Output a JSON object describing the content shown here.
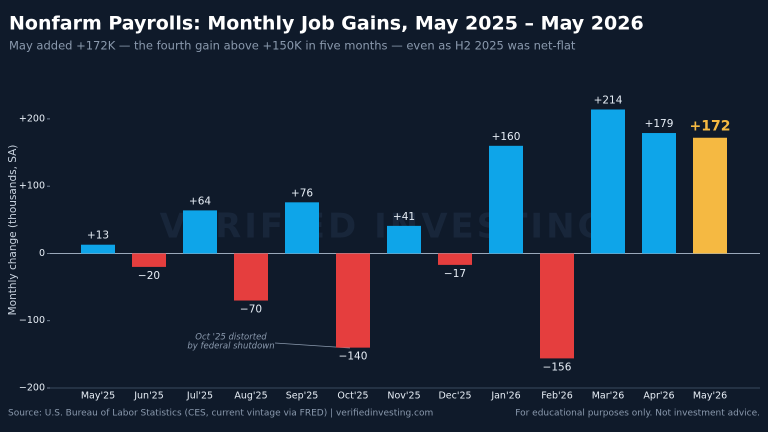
{
  "chart_data": {
    "type": "bar",
    "title": "Nonfarm Payrolls: Monthly Job Gains, May 2025 – May 2026",
    "subtitle": "May added +172K — the fourth gain above +150K in five months — even as H2 2025 was net-flat",
    "y_label": "Monthly change (thousands, SA)",
    "categories": [
      "May'25",
      "Jun'25",
      "Jul'25",
      "Aug'25",
      "Sep'25",
      "Oct'25",
      "Nov'25",
      "Dec'25",
      "Jan'26",
      "Feb'26",
      "Mar'26",
      "Apr'26",
      "May'26"
    ],
    "values": [
      13,
      -20,
      64,
      -70,
      76,
      -140,
      41,
      -17,
      160,
      -156,
      214,
      179,
      172
    ],
    "value_labels": [
      "+13",
      "−20",
      "+64",
      "−70",
      "+76",
      "−140",
      "+41",
      "−17",
      "+160",
      "−156",
      "+214",
      "+179",
      "+172"
    ],
    "colors": [
      "#0ea5e9",
      "#e53e3e",
      "#0ea5e9",
      "#e53e3e",
      "#0ea5e9",
      "#e53e3e",
      "#0ea5e9",
      "#e53e3e",
      "#0ea5e9",
      "#e53e3e",
      "#0ea5e9",
      "#0ea5e9",
      "#f5b942"
    ],
    "ylim": [
      -200,
      240
    ],
    "yticks": [
      {
        "value": -200,
        "label": "−200"
      },
      {
        "value": -100,
        "label": "−100"
      },
      0,
      {
        "value": 100,
        "label": "+100"
      },
      {
        "value": 200,
        "label": "+200"
      }
    ],
    "annotation": [
      "Oct '25 distorted",
      "by federal shutdown"
    ],
    "watermark": "VERIFIED INVESTING",
    "source": "Source: U.S. Bureau of Labor Statistics (CES, current vintage via FRED) | verifiedinvesting.com",
    "disclaimer": "For educational purposes only. Not investment advice."
  }
}
